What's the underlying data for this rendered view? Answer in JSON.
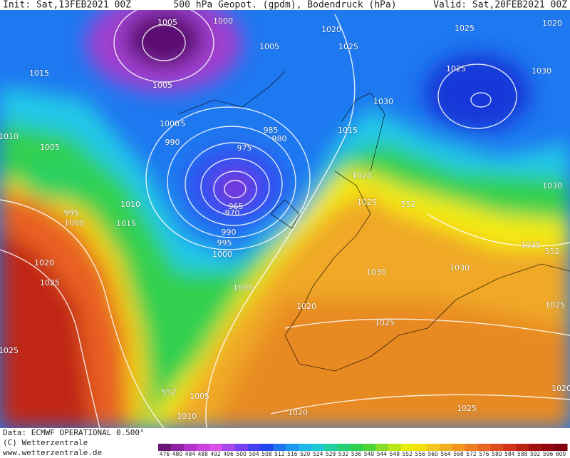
{
  "header": {
    "init": "Init: Sat,13FEB2021 00Z",
    "title": "500 hPa Geopot. (gpdm), Bodendruck (hPa)",
    "valid": "Valid: Sat,20FEB2021 00Z"
  },
  "isobar_labels": [
    "1005",
    "1000",
    "1020",
    "1025",
    "1020",
    "1005",
    "1025",
    "1015",
    "1005",
    "1025",
    "1030",
    "1030",
    "1000",
    "5",
    "985",
    "1015",
    "1010",
    "990",
    "980",
    "1005",
    "975",
    "1020",
    "1030",
    "995",
    "1010",
    "1025",
    "552",
    "965",
    "970",
    "1000",
    "1015",
    "990",
    "995",
    "1035",
    "552",
    "1000",
    "1020",
    "1030",
    "1030",
    "1025",
    "1000",
    "1020",
    "1025",
    "1025",
    "1025",
    "1005",
    "552",
    "1010",
    "1020",
    "1025",
    "1020"
  ],
  "colorbar": {
    "values": [
      476,
      480,
      484,
      488,
      492,
      496,
      500,
      504,
      508,
      512,
      516,
      520,
      524,
      528,
      532,
      536,
      540,
      544,
      548,
      552,
      556,
      560,
      564,
      568,
      572,
      576,
      580,
      584,
      588,
      592,
      596,
      600
    ]
  },
  "footer": {
    "source": "Data: ECMWF OPERATIONAL 0.500°",
    "copyright": "(C) Wetterzentrale",
    "website": "www.wetterzentrale.de"
  }
}
